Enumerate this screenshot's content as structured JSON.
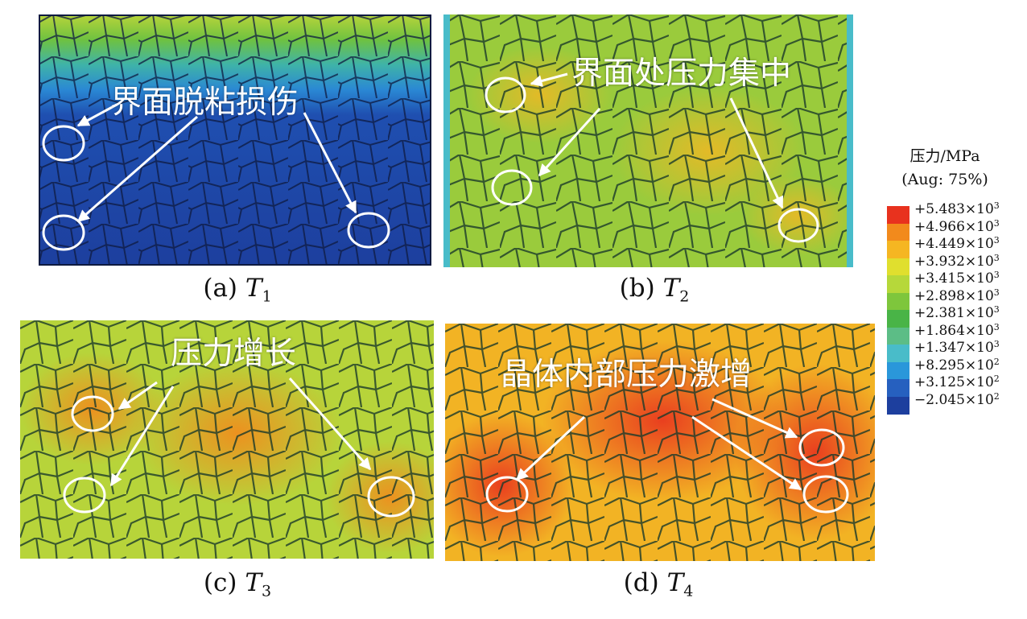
{
  "panels": [
    {
      "id": "a",
      "paren": "(a)",
      "symbol": "T",
      "sub": "1",
      "annotation": "界面脱粘损伤"
    },
    {
      "id": "b",
      "paren": "(b)",
      "symbol": "T",
      "sub": "2",
      "annotation": "界面处压力集中"
    },
    {
      "id": "c",
      "paren": "(c)",
      "symbol": "T",
      "sub": "3",
      "annotation": "压力增长"
    },
    {
      "id": "d",
      "paren": "(d)",
      "symbol": "T",
      "sub": "4",
      "annotation": "晶体内部压力激增"
    }
  ],
  "legend": {
    "title": "压力/MPa",
    "subtitle": "(Aug: 75%)",
    "levels": [
      {
        "label": "+5.483×10",
        "exp": "3",
        "color": "#e8321e"
      },
      {
        "label": "+4.966×10",
        "exp": "3",
        "color": "#f28a1c"
      },
      {
        "label": "+4.449×10",
        "exp": "3",
        "color": "#f5b622"
      },
      {
        "label": "+3.932×10",
        "exp": "3",
        "color": "#e0df2e"
      },
      {
        "label": "+3.415×10",
        "exp": "3",
        "color": "#b6d83a"
      },
      {
        "label": "+2.898×10",
        "exp": "3",
        "color": "#7ec63c"
      },
      {
        "label": "+2.381×10",
        "exp": "3",
        "color": "#49b447"
      },
      {
        "label": "+1.864×10",
        "exp": "3",
        "color": "#5cbd86"
      },
      {
        "label": "+1.347×10",
        "exp": "3",
        "color": "#49bcc9"
      },
      {
        "label": "+8.295×10",
        "exp": "2",
        "color": "#2a97da"
      },
      {
        "label": "+3.125×10",
        "exp": "2",
        "color": "#2660bf"
      },
      {
        "label": "−2.045×10",
        "exp": "2",
        "color": "#1d3f9e"
      }
    ]
  }
}
